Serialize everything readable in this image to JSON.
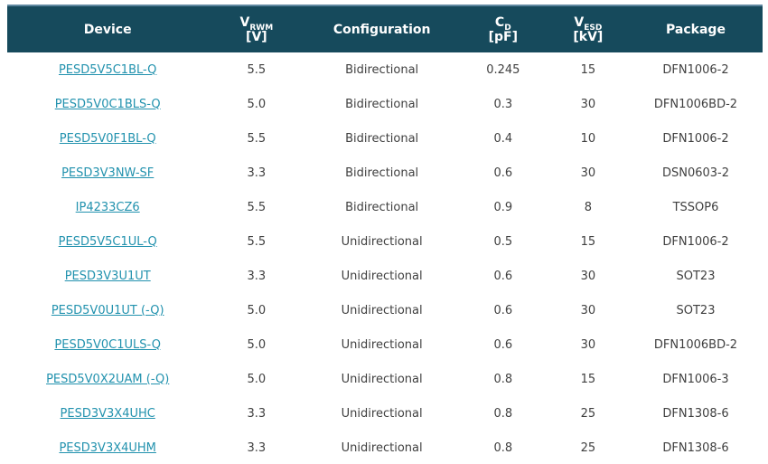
{
  "colors": {
    "background": "#ffffff",
    "header_bg": "#164a5c",
    "header_text": "#ffffff",
    "header_top_border": "#5f88a0",
    "link": "#2292ae",
    "body_text": "#3f3f3f"
  },
  "table": {
    "columns": [
      {
        "label": "Device"
      },
      {
        "main": "V",
        "sub": "RWM",
        "unit": "[V]"
      },
      {
        "label": "Configuration"
      },
      {
        "main": "C",
        "sub": "D",
        "unit": "[pF]"
      },
      {
        "main": "V",
        "sub": "ESD",
        "unit": "[kV]"
      },
      {
        "label": "Package"
      }
    ],
    "rows": [
      {
        "device": "PESD5V5C1BL-Q",
        "vrwm": "5.5",
        "configuration": "Bidirectional",
        "cd": "0.245",
        "vesd": "15",
        "package": "DFN1006-2"
      },
      {
        "device": "PESD5V0C1BLS-Q",
        "vrwm": "5.0",
        "configuration": "Bidirectional",
        "cd": "0.3",
        "vesd": "30",
        "package": "DFN1006BD-2"
      },
      {
        "device": "PESD5V0F1BL-Q",
        "vrwm": "5.5",
        "configuration": "Bidirectional",
        "cd": "0.4",
        "vesd": "10",
        "package": "DFN1006-2"
      },
      {
        "device": "PESD3V3NW-SF",
        "vrwm": "3.3",
        "configuration": "Bidirectional",
        "cd": "0.6",
        "vesd": "30",
        "package": "DSN0603-2"
      },
      {
        "device": "IP4233CZ6",
        "vrwm": "5.5",
        "configuration": "Bidirectional",
        "cd": "0.9",
        "vesd": "8",
        "package": "TSSOP6"
      },
      {
        "device": "PESD5V5C1UL-Q",
        "vrwm": "5.5",
        "configuration": "Unidirectional",
        "cd": "0.5",
        "vesd": "15",
        "package": "DFN1006-2"
      },
      {
        "device": "PESD3V3U1UT",
        "vrwm": "3.3",
        "configuration": "Unidirectional",
        "cd": "0.6",
        "vesd": "30",
        "package": "SOT23"
      },
      {
        "device": "PESD5V0U1UT (-Q)",
        "vrwm": "5.0",
        "configuration": "Unidirectional",
        "cd": "0.6",
        "vesd": "30",
        "package": "SOT23"
      },
      {
        "device": "PESD5V0C1ULS-Q",
        "vrwm": "5.0",
        "configuration": "Unidirectional",
        "cd": "0.6",
        "vesd": "30",
        "package": "DFN1006BD-2"
      },
      {
        "device": "PESD5V0X2UAM (-Q)",
        "vrwm": "5.0",
        "configuration": "Unidirectional",
        "cd": "0.8",
        "vesd": "15",
        "package": "DFN1006-3"
      },
      {
        "device": "PESD3V3X4UHC",
        "vrwm": "3.3",
        "configuration": "Unidirectional",
        "cd": "0.8",
        "vesd": "25",
        "package": "DFN1308-6"
      },
      {
        "device": "PESD3V3X4UHM",
        "vrwm": "3.3",
        "configuration": "Unidirectional",
        "cd": "0.8",
        "vesd": "25",
        "package": "DFN1308-6"
      }
    ]
  }
}
